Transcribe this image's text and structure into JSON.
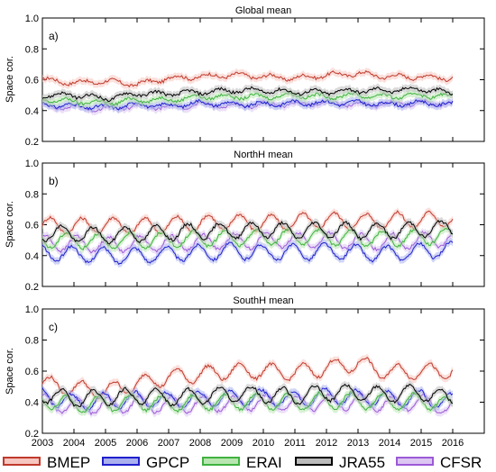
{
  "chart_data": [
    {
      "type": "line",
      "title": "Global mean",
      "panel_label": "a)",
      "ylabel": "Space cor.",
      "ylim": [
        0.2,
        1.0
      ],
      "yticks": [
        0.2,
        0.4,
        0.6,
        0.8,
        1.0
      ],
      "xlim": [
        2003,
        2017
      ],
      "series": [
        {
          "name": "BMEP",
          "values": [
            0.6,
            0.58,
            0.59,
            0.57,
            0.61,
            0.62,
            0.63,
            0.62,
            0.61,
            0.63,
            0.64,
            0.62,
            0.62,
            0.61
          ]
        },
        {
          "name": "GPCP",
          "values": [
            0.44,
            0.43,
            0.42,
            0.44,
            0.43,
            0.45,
            0.44,
            0.44,
            0.45,
            0.45,
            0.45,
            0.44,
            0.45,
            0.44
          ]
        },
        {
          "name": "ERAI",
          "values": [
            0.47,
            0.46,
            0.45,
            0.47,
            0.47,
            0.49,
            0.49,
            0.49,
            0.5,
            0.49,
            0.5,
            0.49,
            0.5,
            0.49
          ]
        },
        {
          "name": "JRA55",
          "values": [
            0.5,
            0.5,
            0.48,
            0.51,
            0.51,
            0.52,
            0.53,
            0.53,
            0.52,
            0.52,
            0.53,
            0.53,
            0.54,
            0.51
          ]
        },
        {
          "name": "CFSR",
          "values": [
            0.43,
            0.42,
            0.41,
            0.43,
            0.42,
            0.44,
            0.43,
            0.44,
            0.44,
            0.45,
            0.44,
            0.44,
            0.45,
            0.44
          ]
        }
      ]
    },
    {
      "type": "line",
      "title": "NorthH mean",
      "panel_label": "b)",
      "ylabel": "Space cor.",
      "ylim": [
        0.2,
        1.0
      ],
      "yticks": [
        0.2,
        0.4,
        0.6,
        0.8,
        1.0
      ],
      "xlim": [
        2003,
        2017
      ],
      "series": [
        {
          "name": "BMEP",
          "values": [
            0.6,
            0.59,
            0.6,
            0.59,
            0.6,
            0.61,
            0.62,
            0.61,
            0.62,
            0.63,
            0.62,
            0.63,
            0.63,
            0.64
          ]
        },
        {
          "name": "GPCP",
          "values": [
            0.42,
            0.41,
            0.4,
            0.4,
            0.41,
            0.42,
            0.43,
            0.42,
            0.42,
            0.43,
            0.42,
            0.41,
            0.43,
            0.44
          ]
        },
        {
          "name": "ERAI",
          "values": [
            0.5,
            0.5,
            0.49,
            0.5,
            0.5,
            0.51,
            0.51,
            0.52,
            0.52,
            0.52,
            0.51,
            0.51,
            0.52,
            0.53
          ]
        },
        {
          "name": "JRA55",
          "values": [
            0.55,
            0.54,
            0.53,
            0.54,
            0.55,
            0.56,
            0.56,
            0.57,
            0.56,
            0.57,
            0.56,
            0.56,
            0.57,
            0.58
          ]
        },
        {
          "name": "CFSR",
          "values": [
            0.48,
            0.48,
            0.47,
            0.48,
            0.48,
            0.49,
            0.49,
            0.5,
            0.5,
            0.5,
            0.49,
            0.49,
            0.5,
            0.51
          ]
        }
      ]
    },
    {
      "type": "line",
      "title": "SouthH mean",
      "panel_label": "c)",
      "ylabel": "Space cor.",
      "ylim": [
        0.2,
        1.0
      ],
      "yticks": [
        0.2,
        0.4,
        0.6,
        0.8,
        1.0
      ],
      "xlim": [
        2003,
        2017
      ],
      "xticks": [
        2003,
        2004,
        2005,
        2006,
        2007,
        2008,
        2009,
        2010,
        2011,
        2012,
        2013,
        2014,
        2015,
        2016
      ],
      "series": [
        {
          "name": "BMEP",
          "values": [
            0.52,
            0.49,
            0.47,
            0.52,
            0.56,
            0.58,
            0.6,
            0.6,
            0.59,
            0.62,
            0.65,
            0.59,
            0.6,
            0.6
          ]
        },
        {
          "name": "GPCP",
          "values": [
            0.44,
            0.4,
            0.41,
            0.42,
            0.41,
            0.42,
            0.43,
            0.43,
            0.42,
            0.44,
            0.43,
            0.42,
            0.43,
            0.4
          ]
        },
        {
          "name": "ERAI",
          "values": [
            0.42,
            0.38,
            0.39,
            0.4,
            0.39,
            0.4,
            0.4,
            0.41,
            0.4,
            0.41,
            0.41,
            0.4,
            0.41,
            0.38
          ]
        },
        {
          "name": "JRA55",
          "values": [
            0.45,
            0.42,
            0.43,
            0.44,
            0.43,
            0.44,
            0.45,
            0.45,
            0.44,
            0.46,
            0.46,
            0.45,
            0.46,
            0.42
          ]
        },
        {
          "name": "CFSR",
          "values": [
            0.4,
            0.37,
            0.38,
            0.39,
            0.38,
            0.39,
            0.39,
            0.4,
            0.39,
            0.4,
            0.4,
            0.39,
            0.4,
            0.36
          ]
        }
      ]
    }
  ],
  "legend": [
    {
      "name": "BMEP",
      "line_color": "#c0392b",
      "band_color": "#f6c6c0"
    },
    {
      "name": "GPCP",
      "line_color": "#1f1fcc",
      "band_color": "#aab0ee"
    },
    {
      "name": "ERAI",
      "line_color": "#3fb23f",
      "band_color": "#b8e6b0"
    },
    {
      "name": "JRA55",
      "line_color": "#000000",
      "band_color": "#bbbbbb"
    },
    {
      "name": "CFSR",
      "line_color": "#9b59d6",
      "band_color": "#dcc6f2"
    }
  ]
}
